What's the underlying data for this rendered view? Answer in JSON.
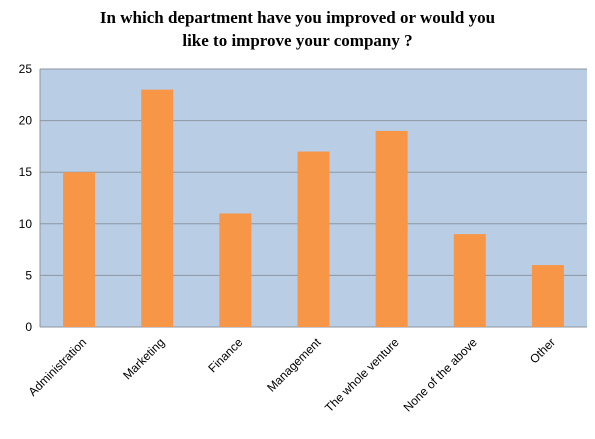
{
  "chart_data": {
    "type": "bar",
    "title_lines": [
      "In which department have you improved or would you",
      "like to improve your company ?"
    ],
    "categories": [
      "Administration",
      "Marketing",
      "Finance",
      "Management",
      "The whole venture",
      "None of the above",
      "Other"
    ],
    "values": [
      15,
      23,
      11,
      17,
      19,
      9,
      6
    ],
    "xlabel": "",
    "ylabel": "",
    "ylim": [
      0,
      25
    ],
    "yticks": [
      "0",
      "5",
      "10",
      "15",
      "20",
      "25"
    ],
    "grid": true,
    "legend": "none",
    "colors": {
      "bar": "#F79646",
      "plot_background": "#B9CDE5",
      "grid": "#8C96A0"
    }
  }
}
